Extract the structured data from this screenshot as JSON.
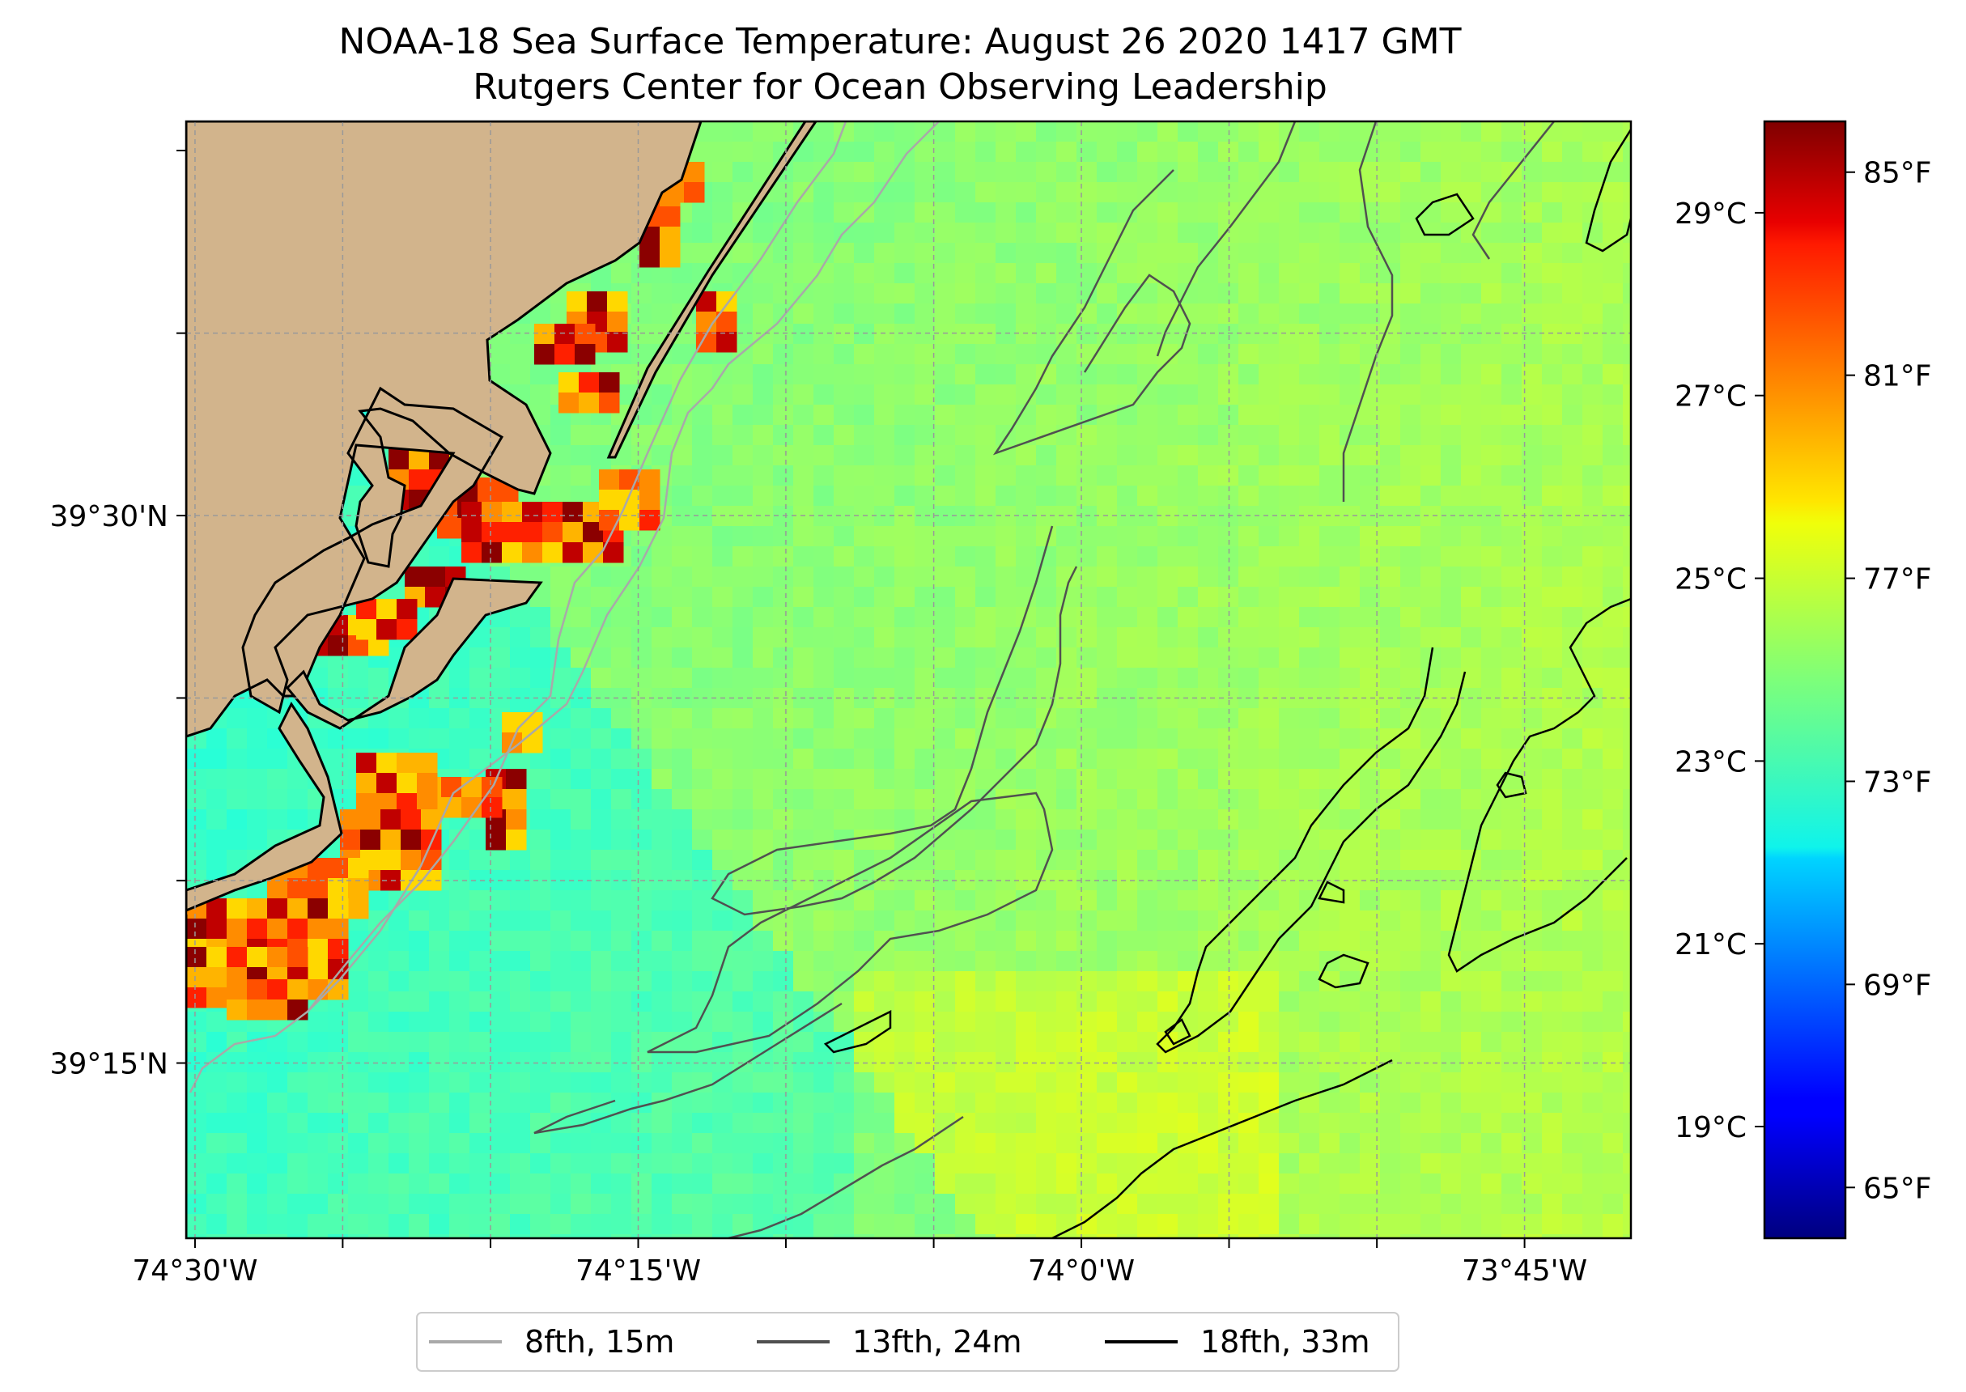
{
  "title_line1": "NOAA-18 Sea Surface Temperature: August 26 2020 1417 GMT",
  "title_line2": "Rutgers Center for Ocean Observing Leadership",
  "map": {
    "x_ticks": [
      {
        "lon": -74.5,
        "label": "74°30'W"
      },
      {
        "lon": -74.25,
        "label": "74°15'W"
      },
      {
        "lon": -74.0,
        "label": "74°0'W"
      },
      {
        "lon": -73.75,
        "label": "73°45'W"
      }
    ],
    "y_ticks": [
      {
        "lat": 39.5,
        "label": "39°30'N"
      },
      {
        "lat": 39.25,
        "label": "39°15'N"
      }
    ],
    "lon_range": [
      -74.505,
      -73.69
    ],
    "lat_range": [
      39.17,
      39.68
    ],
    "land_color": "#d2b48c",
    "gridlines": true
  },
  "colorbar": {
    "colormap": "jet",
    "celsius_ticks": [
      {
        "value": 29,
        "label": "29°C"
      },
      {
        "value": 27,
        "label": "27°C"
      },
      {
        "value": 25,
        "label": "25°C"
      },
      {
        "value": 23,
        "label": "23°C"
      },
      {
        "value": 21,
        "label": "21°C"
      },
      {
        "value": 19,
        "label": "19°C"
      }
    ],
    "fahrenheit_ticks": [
      {
        "value": 85,
        "label": "85°F"
      },
      {
        "value": 81,
        "label": "81°F"
      },
      {
        "value": 77,
        "label": "77°F"
      },
      {
        "value": 73,
        "label": "73°F"
      },
      {
        "value": 69,
        "label": "69°F"
      },
      {
        "value": 65,
        "label": "65°F"
      }
    ],
    "range_fahrenheit": [
      64,
      86
    ]
  },
  "legend": [
    {
      "label": "8fth, 15m",
      "color": "#a9a9a9"
    },
    {
      "label": "13fth, 24m",
      "color": "#505050"
    },
    {
      "label": "18fth, 33m",
      "color": "#000000"
    }
  ]
}
